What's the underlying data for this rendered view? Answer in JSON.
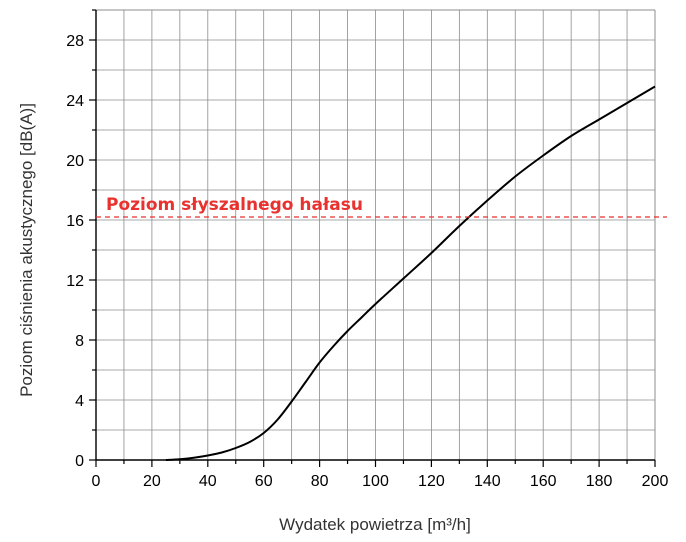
{
  "chart_data": {
    "type": "line",
    "xlabel": "Wydatek powietrza [m³/h]",
    "ylabel": "Poziom ciśnienia akustycznego [dB(A)]",
    "xlim": [
      0,
      200
    ],
    "ylim": [
      0,
      30
    ],
    "x_ticks": [
      0,
      20,
      40,
      60,
      80,
      100,
      120,
      140,
      160,
      180,
      200
    ],
    "y_ticks": [
      0,
      4,
      8,
      12,
      16,
      20,
      24,
      28
    ],
    "grid": true,
    "series": [
      {
        "x": [
          25,
          30,
          35,
          40,
          45,
          50,
          55,
          60,
          65,
          70,
          75,
          80,
          85,
          90,
          95,
          100,
          110,
          120,
          130,
          140,
          150,
          160,
          170,
          180,
          190,
          200
        ],
        "y": [
          0,
          0.05,
          0.15,
          0.3,
          0.5,
          0.8,
          1.2,
          1.8,
          2.7,
          3.9,
          5.2,
          6.5,
          7.6,
          8.6,
          9.5,
          10.4,
          12.1,
          13.8,
          15.6,
          17.3,
          18.9,
          20.3,
          21.6,
          22.7,
          23.8,
          24.9
        ],
        "color": "#000000"
      }
    ],
    "reference_line": {
      "y": 16.2,
      "label": "Poziom słyszalnego hałasu",
      "color": "#e8322f",
      "style": "dashed"
    }
  }
}
